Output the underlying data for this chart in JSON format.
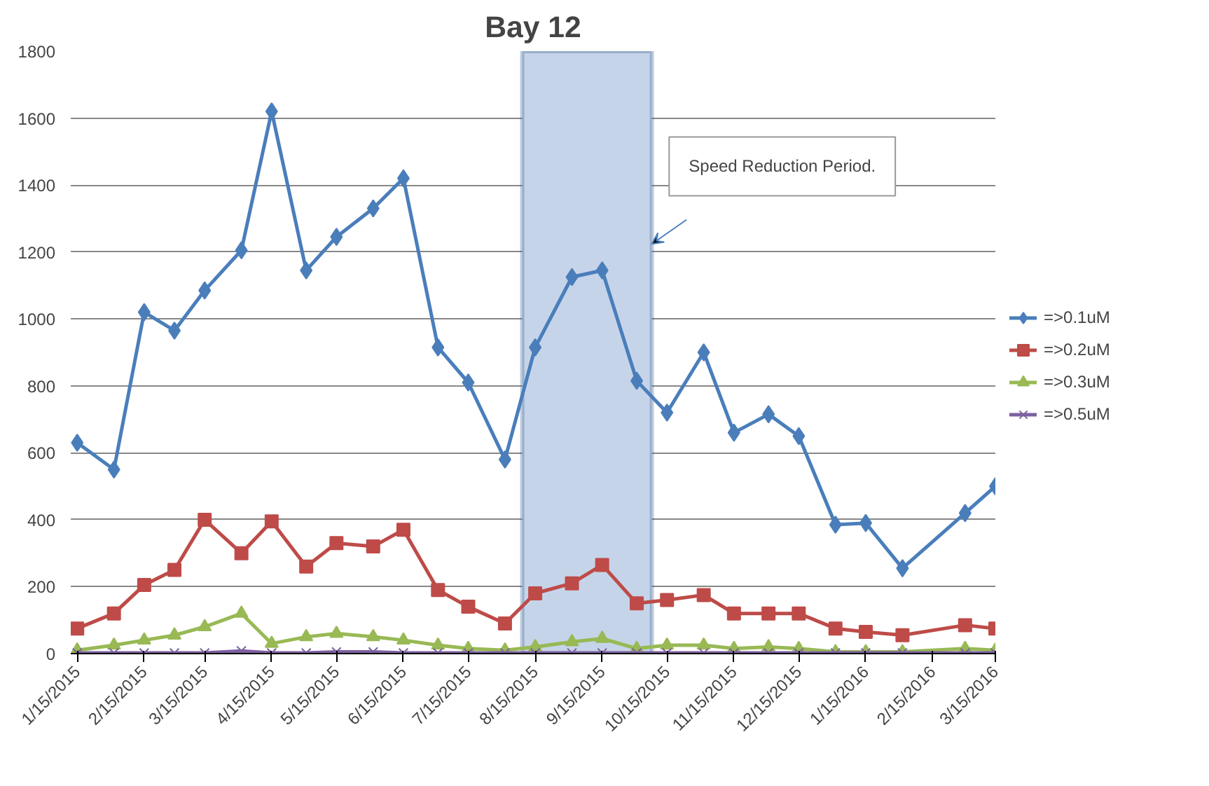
{
  "chart_data": {
    "type": "line",
    "title": "Bay 12",
    "x": [
      "2015-01-15",
      "2015-02-01",
      "2015-02-15",
      "2015-03-01",
      "2015-03-15",
      "2015-04-01",
      "2015-04-15",
      "2015-05-01",
      "2015-05-15",
      "2015-06-01",
      "2015-06-15",
      "2015-07-01",
      "2015-07-15",
      "2015-08-01",
      "2015-08-15",
      "2015-09-01",
      "2015-09-15",
      "2015-10-01",
      "2015-10-15",
      "2015-11-01",
      "2015-11-15",
      "2015-12-01",
      "2015-12-15",
      "2016-01-01",
      "2016-01-15",
      "2016-02-01",
      "2016-03-01",
      "2016-03-15"
    ],
    "series": [
      {
        "name": "=>0.1uM",
        "color": "#4a7ebb",
        "marker": "diamond",
        "values": [
          630,
          550,
          1020,
          965,
          1085,
          1205,
          1620,
          1145,
          1245,
          1330,
          1420,
          915,
          810,
          580,
          915,
          1125,
          1145,
          815,
          720,
          900,
          660,
          715,
          650,
          385,
          390,
          255,
          420,
          500
        ]
      },
      {
        "name": "=>0.2uM",
        "color": "#be4b48",
        "marker": "square",
        "values": [
          75,
          120,
          205,
          250,
          400,
          300,
          395,
          260,
          330,
          320,
          370,
          190,
          140,
          90,
          180,
          210,
          265,
          150,
          160,
          175,
          120,
          120,
          120,
          75,
          65,
          55,
          85,
          75
        ]
      },
      {
        "name": "=>0.3uM",
        "color": "#98b954",
        "marker": "triangle",
        "values": [
          10,
          25,
          40,
          55,
          80,
          120,
          30,
          50,
          60,
          50,
          40,
          25,
          15,
          10,
          20,
          35,
          45,
          15,
          25,
          25,
          15,
          20,
          15,
          5,
          5,
          5,
          15,
          10
        ]
      },
      {
        "name": "=>0.5uM",
        "color": "#7d60a0",
        "marker": "cross",
        "values": [
          2,
          2,
          2,
          2,
          2,
          8,
          2,
          2,
          5,
          5,
          2,
          2,
          2,
          2,
          2,
          2,
          2,
          2,
          2,
          2,
          2,
          2,
          2,
          2,
          2,
          2,
          2,
          2
        ]
      }
    ],
    "ylim": [
      0,
      1800
    ],
    "yticks": [
      0,
      200,
      400,
      600,
      800,
      1000,
      1200,
      1400,
      1600,
      1800
    ],
    "xlim": [
      "2015-01-12",
      "2016-03-15"
    ],
    "xticks": [
      {
        "value": "2015-01-15",
        "label": "1/15/2015"
      },
      {
        "value": "2015-02-15",
        "label": "2/15/2015"
      },
      {
        "value": "2015-03-15",
        "label": "3/15/2015"
      },
      {
        "value": "2015-04-15",
        "label": "4/15/2015"
      },
      {
        "value": "2015-05-15",
        "label": "5/15/2015"
      },
      {
        "value": "2015-06-15",
        "label": "6/15/2015"
      },
      {
        "value": "2015-07-15",
        "label": "7/15/2015"
      },
      {
        "value": "2015-08-15",
        "label": "8/15/2015"
      },
      {
        "value": "2015-09-15",
        "label": "9/15/2015"
      },
      {
        "value": "2015-10-15",
        "label": "10/15/2015"
      },
      {
        "value": "2015-11-15",
        "label": "11/15/2015"
      },
      {
        "value": "2015-12-15",
        "label": "12/15/2015"
      },
      {
        "value": "2016-01-15",
        "label": "1/15/2016"
      },
      {
        "value": "2016-02-15",
        "label": "2/15/2016"
      },
      {
        "value": "2016-03-15",
        "label": "3/15/2016"
      }
    ],
    "bands": [
      {
        "axis": "x",
        "from": "2015-08-09",
        "to": "2015-10-08",
        "label": "Speed Reduction Period.",
        "color": "#c6d4e9"
      }
    ],
    "grid": "y",
    "legend": "right",
    "line_style": "solid"
  }
}
